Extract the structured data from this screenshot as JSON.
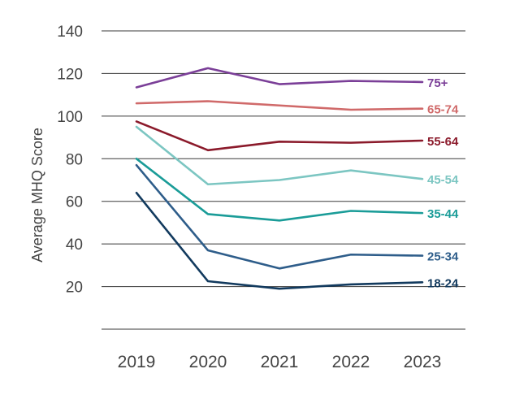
{
  "chart_data": {
    "type": "line",
    "title": "",
    "xlabel": "",
    "ylabel": "Average MHQ Score",
    "x": [
      "2019",
      "2020",
      "2021",
      "2022",
      "2023"
    ],
    "ylim": [
      0,
      140
    ],
    "yticks": [
      20,
      40,
      60,
      80,
      100,
      120,
      140
    ],
    "grid": true,
    "legend": "inline-right",
    "series": [
      {
        "name": "75+",
        "color": "#7b3f98",
        "values": [
          113.5,
          122.5,
          115,
          116.5,
          116
        ]
      },
      {
        "name": "65-74",
        "color": "#d06a6a",
        "values": [
          106,
          107,
          105,
          103,
          103.5
        ]
      },
      {
        "name": "55-64",
        "color": "#8b1a2b",
        "values": [
          97.5,
          84,
          88,
          87.5,
          88.5
        ]
      },
      {
        "name": "45-54",
        "color": "#7cc6c2",
        "values": [
          95,
          68,
          70,
          74.5,
          70.5
        ]
      },
      {
        "name": "35-44",
        "color": "#1a9c98",
        "values": [
          80,
          54,
          51,
          55.5,
          54.5
        ]
      },
      {
        "name": "25-34",
        "color": "#2e5d8a",
        "values": [
          77,
          37,
          28.5,
          35,
          34.5
        ]
      },
      {
        "name": "18-24",
        "color": "#123a5e",
        "values": [
          64,
          22.5,
          19,
          21,
          22
        ]
      }
    ]
  }
}
